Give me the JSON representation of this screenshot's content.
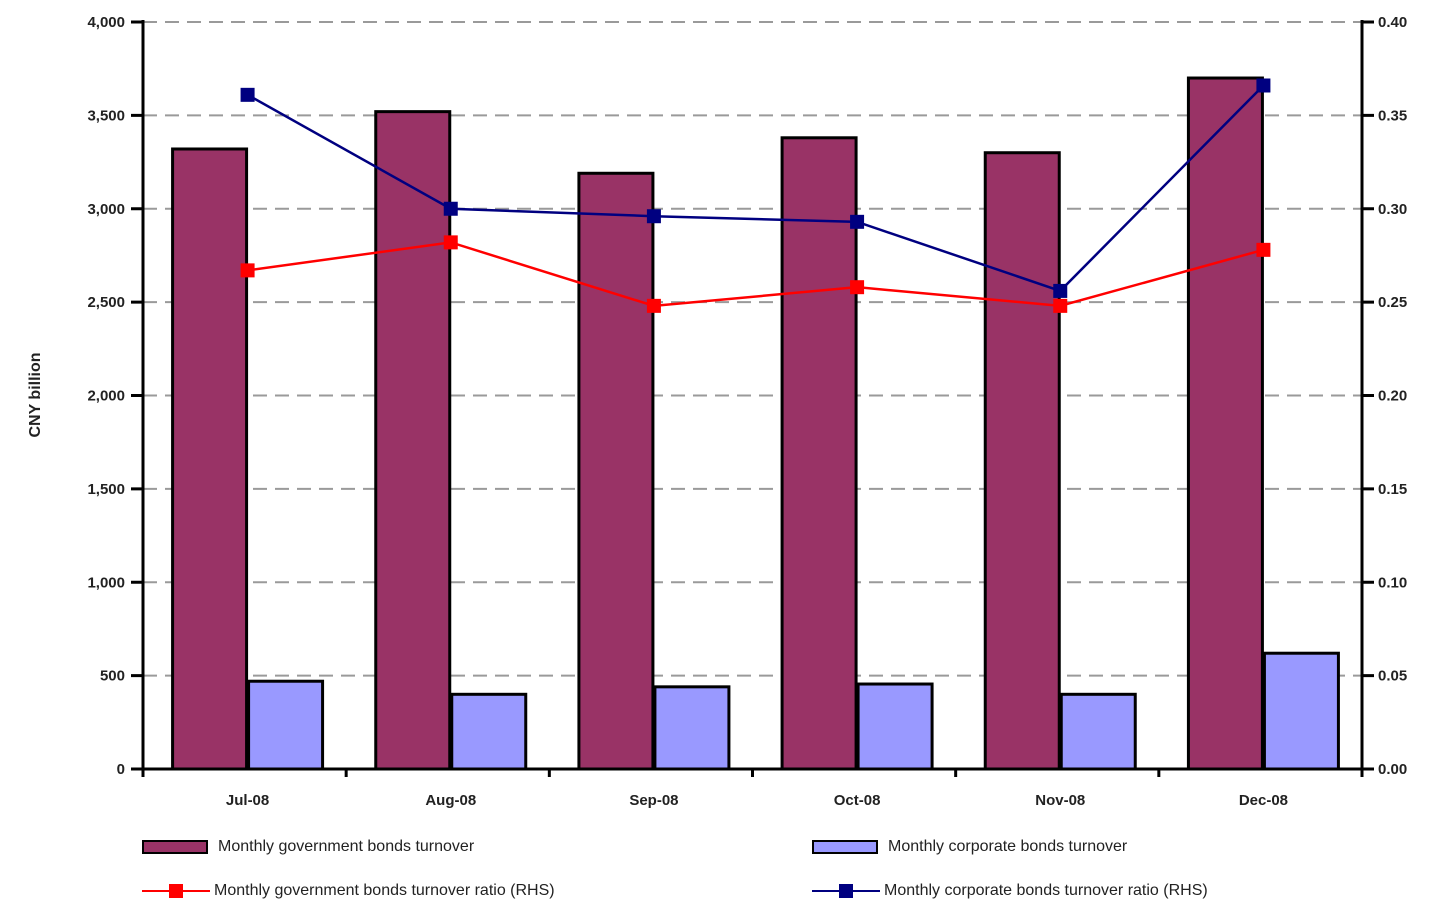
{
  "chart_data": {
    "type": "bar",
    "categories": [
      "Jul-08",
      "Aug-08",
      "Sep-08",
      "Oct-08",
      "Nov-08",
      "Dec-08"
    ],
    "series": [
      {
        "name": "Monthly government bonds turnover",
        "kind": "bar",
        "axis": "left",
        "color": "#993366",
        "values": [
          3320,
          3520,
          3190,
          3380,
          3300,
          3700
        ]
      },
      {
        "name": "Monthly corporate bonds turnover",
        "kind": "bar",
        "axis": "left",
        "color": "#9999ff",
        "values": [
          470,
          400,
          440,
          455,
          400,
          620
        ]
      },
      {
        "name": "Monthly government bonds turnover ratio (RHS)",
        "kind": "line",
        "axis": "right",
        "color": "#ff0000",
        "values": [
          0.267,
          0.282,
          0.248,
          0.258,
          0.248,
          0.278
        ]
      },
      {
        "name": "Monthly corporate bonds turnover ratio (RHS)",
        "kind": "line",
        "axis": "right",
        "color": "#000080",
        "values": [
          0.361,
          0.3,
          0.296,
          0.293,
          0.256,
          0.366
        ]
      }
    ],
    "ylabel": "CNY billion",
    "ylim": [
      0,
      4000
    ],
    "yticks": [
      "0",
      "500",
      "1,000",
      "1,500",
      "2,000",
      "2,500",
      "3,000",
      "3,500",
      "4,000"
    ],
    "y2lim": [
      0,
      0.4
    ],
    "y2ticks": [
      "0.00",
      "0.05",
      "0.10",
      "0.15",
      "0.20",
      "0.25",
      "0.30",
      "0.35",
      "0.40"
    ],
    "grid": "horizontal dashed",
    "legend_position": "bottom"
  }
}
